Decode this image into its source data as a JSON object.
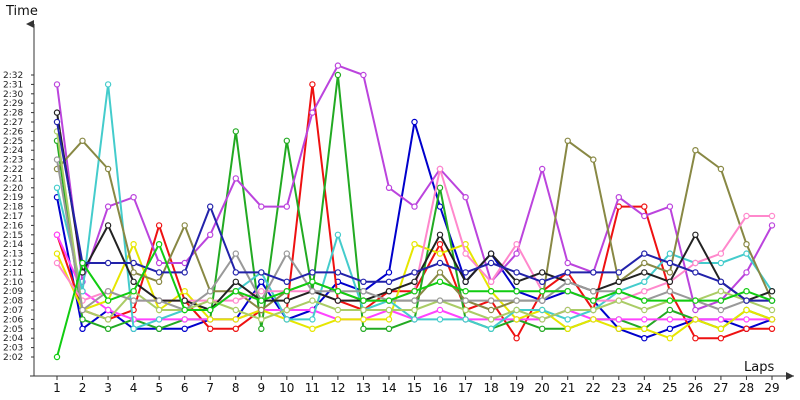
{
  "chart_data": {
    "type": "line",
    "ylabel": "Time",
    "xlabel": "Laps",
    "x": [
      1,
      2,
      3,
      4,
      5,
      6,
      7,
      8,
      9,
      10,
      11,
      12,
      13,
      14,
      15,
      16,
      17,
      18,
      19,
      20,
      21,
      22,
      23,
      24,
      25,
      26,
      27,
      28,
      29
    ],
    "xlim": [
      1,
      29
    ],
    "ylim": [
      "2:01",
      "2:34"
    ],
    "y_ticks": [
      "2:02",
      "2:03",
      "2:04",
      "2:05",
      "2:06",
      "2:07",
      "2:08",
      "2:09",
      "2:10",
      "2:11",
      "2:12",
      "2:13",
      "2:14",
      "2:15",
      "2:16",
      "2:17",
      "2:18",
      "2:19",
      "2:20",
      "2:21",
      "2:22",
      "2:23",
      "2:24",
      "2:25",
      "2:26",
      "2:27",
      "2:28",
      "2:29",
      "2:30",
      "2:31",
      "2:32"
    ],
    "grid": false,
    "legend": false,
    "series": [
      {
        "color": "#0000cc",
        "values": [
          "2:19",
          "2:05",
          "2:07",
          "2:05",
          "2:05",
          "2:05",
          "2:06",
          "2:06",
          "2:10",
          "2:06",
          "2:07",
          "2:10",
          "2:09",
          "2:11",
          "2:27",
          "2:18",
          "2:10",
          "2:13",
          "2:09",
          "2:08",
          "2:09",
          "2:08",
          "2:05",
          "2:04",
          "2:05",
          "2:06",
          "2:06",
          "2:05",
          "2:06"
        ]
      },
      {
        "color": "#ee1111",
        "values": [
          "2:15",
          "2:07",
          "2:06",
          "2:07",
          "2:16",
          "2:08",
          "2:05",
          "2:05",
          "2:07",
          "2:07",
          "2:31",
          "2:08",
          "2:07",
          "2:09",
          "2:09",
          "2:14",
          "2:07",
          "2:08",
          "2:04",
          "2:09",
          "2:11",
          "2:07",
          "2:18",
          "2:18",
          "2:09",
          "2:04",
          "2:04",
          "2:05",
          "2:05"
        ]
      },
      {
        "color": "#22aa22",
        "values": [
          "2:25",
          "2:06",
          "2:05",
          "2:06",
          "2:05",
          "2:06",
          "2:06",
          "2:26",
          "2:05",
          "2:25",
          "2:09",
          "2:32",
          "2:05",
          "2:05",
          "2:06",
          "2:20",
          "2:06",
          "2:05",
          "2:06",
          "2:05",
          "2:05",
          "2:06",
          "2:06",
          "2:05",
          "2:07",
          "2:06",
          "2:05",
          "2:07",
          "2:06"
        ]
      },
      {
        "color": "#ff44ff",
        "values": [
          "2:15",
          "2:09",
          "2:07",
          "2:06",
          "2:06",
          "2:06",
          "2:06",
          "2:06",
          "2:07",
          "2:07",
          "2:07",
          "2:06",
          "2:06",
          "2:07",
          "2:06",
          "2:07",
          "2:06",
          "2:06",
          "2:06",
          "2:06",
          "2:07",
          "2:06",
          "2:06",
          "2:06",
          "2:06",
          "2:06",
          "2:06",
          "2:06",
          "2:06"
        ]
      },
      {
        "color": "#bb44dd",
        "values": [
          "2:31",
          "2:10",
          "2:18",
          "2:19",
          "2:12",
          "2:12",
          "2:15",
          "2:21",
          "2:18",
          "2:18",
          "2:28",
          "2:33",
          "2:32",
          "2:20",
          "2:18",
          "2:22",
          "2:19",
          "2:10",
          "2:13",
          "2:22",
          "2:12",
          "2:11",
          "2:19",
          "2:17",
          "2:18",
          "2:07",
          "2:08",
          "2:11",
          "2:16"
        ]
      },
      {
        "color": "#e6e600",
        "values": [
          "2:13",
          "2:07",
          "2:08",
          "2:14",
          "2:07",
          "2:09",
          "2:06",
          "2:06",
          "2:07",
          "2:06",
          "2:05",
          "2:06",
          "2:06",
          "2:06",
          "2:14",
          "2:13",
          "2:14",
          "2:09",
          "2:06",
          "2:07",
          "2:05",
          "2:06",
          "2:05",
          "2:05",
          "2:04",
          "2:06",
          "2:05",
          "2:07",
          "2:06"
        ]
      },
      {
        "color": "#44cccc",
        "values": [
          "2:20",
          "2:09",
          "2:31",
          "2:05",
          "2:06",
          "2:07",
          "2:07",
          "2:09",
          "2:11",
          "2:06",
          "2:06",
          "2:15",
          "2:07",
          "2:08",
          "2:06",
          "2:06",
          "2:06",
          "2:05",
          "2:07",
          "2:07",
          "2:06",
          "2:07",
          "2:09",
          "2:10",
          "2:13",
          "2:12",
          "2:12",
          "2:13",
          "2:09"
        ]
      },
      {
        "color": "#888844",
        "values": [
          "2:22",
          "2:25",
          "2:22",
          "2:11",
          "2:10",
          "2:16",
          "2:09",
          "2:09",
          "2:07",
          "2:09",
          "2:10",
          "2:09",
          "2:08",
          "2:08",
          "2:08",
          "2:11",
          "2:08",
          "2:07",
          "2:08",
          "2:08",
          "2:25",
          "2:23",
          "2:10",
          "2:12",
          "2:11",
          "2:24",
          "2:22",
          "2:14",
          "2:08"
        ]
      },
      {
        "color": "#ff88cc",
        "values": [
          "2:12",
          "2:08",
          "2:09",
          "2:08",
          "2:08",
          "2:08",
          "2:08",
          "2:08",
          "2:09",
          "2:09",
          "2:09",
          "2:08",
          "2:08",
          "2:08",
          "2:09",
          "2:22",
          "2:13",
          "2:10",
          "2:14",
          "2:09",
          "2:09",
          "2:08",
          "2:08",
          "2:09",
          "2:10",
          "2:12",
          "2:13",
          "2:17",
          "2:17"
        ]
      },
      {
        "color": "#222222",
        "values": [
          "2:28",
          "2:11",
          "2:16",
          "2:10",
          "2:08",
          "2:08",
          "2:07",
          "2:10",
          "2:08",
          "2:08",
          "2:09",
          "2:08",
          "2:08",
          "2:09",
          "2:10",
          "2:15",
          "2:10",
          "2:13",
          "2:10",
          "2:11",
          "2:10",
          "2:09",
          "2:10",
          "2:11",
          "2:10",
          "2:15",
          "2:10",
          "2:08",
          "2:09"
        ]
      },
      {
        "color": "#aacc66",
        "values": [
          "2:26",
          "2:07",
          "2:06",
          "2:09",
          "2:07",
          "2:07",
          "2:08",
          "2:07",
          "2:06",
          "2:07",
          "2:08",
          "2:07",
          "2:07",
          "2:07",
          "2:07",
          "2:08",
          "2:07",
          "2:06",
          "2:07",
          "2:06",
          "2:07",
          "2:07",
          "2:08",
          "2:07",
          "2:08",
          "2:08",
          "2:09",
          "2:08",
          "2:07"
        ]
      },
      {
        "color": "#999999",
        "values": [
          "2:23",
          "2:07",
          "2:09",
          "2:08",
          "2:08",
          "2:07",
          "2:09",
          "2:13",
          "2:08",
          "2:13",
          "2:09",
          "2:09",
          "2:09",
          "2:08",
          "2:08",
          "2:08",
          "2:08",
          "2:08",
          "2:08",
          "2:08",
          "2:10",
          "2:09",
          "2:09",
          "2:08",
          "2:09",
          "2:08",
          "2:07",
          "2:08",
          "2:08"
        ]
      },
      {
        "color": "#2222aa",
        "values": [
          "2:27",
          "2:12",
          "2:12",
          "2:12",
          "2:11",
          "2:11",
          "2:18",
          "2:11",
          "2:11",
          "2:10",
          "2:11",
          "2:11",
          "2:10",
          "2:10",
          "2:11",
          "2:12",
          "2:11",
          "2:12",
          "2:11",
          "2:10",
          "2:11",
          "2:11",
          "2:11",
          "2:13",
          "2:12",
          "2:11",
          "2:10",
          "2:08",
          "2:08"
        ]
      },
      {
        "color": "#11cc11",
        "values": [
          "2:02",
          "2:12",
          "2:08",
          "2:09",
          "2:14",
          "2:07",
          "2:07",
          "2:09",
          "2:08",
          "2:09",
          "2:10",
          "2:09",
          "2:08",
          "2:08",
          "2:09",
          "2:10",
          "2:09",
          "2:09",
          "2:09",
          "2:09",
          "2:09",
          "2:08",
          "2:09",
          "2:08",
          "2:08",
          "2:08",
          "2:08",
          "2:09",
          "2:08"
        ]
      }
    ]
  }
}
